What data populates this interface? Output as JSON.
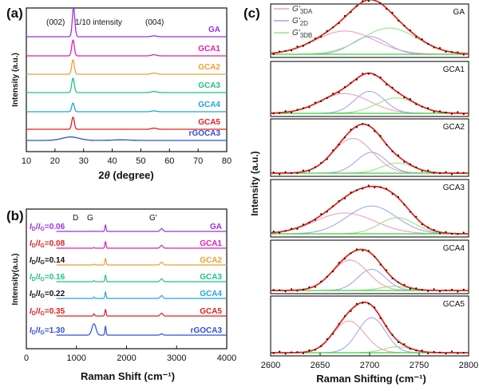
{
  "colors": {
    "GA": "#9b30e8",
    "GCA1": "#e01fb4",
    "GCA2": "#f0a030",
    "GCA3": "#22c08a",
    "GCA4": "#21a3e0",
    "GCA5": "#e0201e",
    "rGOCA3": "#2f4fdc",
    "raw": "#111111",
    "fit": "#e8261d",
    "g3da": "#f0a0b8",
    "g2d": "#a2a8ee",
    "g3db": "#9ee08c",
    "base": "#39d63a",
    "black": "#111111"
  },
  "panels": {
    "a": {
      "label": "(a)"
    },
    "b": {
      "label": "(b)"
    },
    "c": {
      "label": "(c)"
    }
  },
  "chart_data": [
    {
      "type": "line",
      "title": "",
      "xlabel": "2θ (degree)",
      "xlabel_main": "2",
      "xlabel_italic": "θ",
      "xlabel_unit": " (degree)",
      "ylabel": "Intensity (a.u.)",
      "xlim": [
        10,
        80
      ],
      "xticks": [
        "10",
        "20",
        "30",
        "40",
        "50",
        "60",
        "70",
        "80"
      ],
      "annotations": [
        "(002)",
        "1/10 intensity",
        "(004)"
      ],
      "stacked_offset": true,
      "series": [
        {
          "name": "GA",
          "peaks": [
            {
              "x": 26.5,
              "height": 1.0
            },
            {
              "x": 54.6,
              "height": 0.03
            }
          ]
        },
        {
          "name": "GCA1",
          "peaks": [
            {
              "x": 26.3,
              "height": 0.55
            },
            {
              "x": 54.6,
              "height": 0.04
            }
          ]
        },
        {
          "name": "GCA2",
          "peaks": [
            {
              "x": 26.3,
              "height": 0.5
            },
            {
              "x": 54.6,
              "height": 0.04
            }
          ]
        },
        {
          "name": "GCA3",
          "peaks": [
            {
              "x": 26.3,
              "height": 0.5
            },
            {
              "x": 54.6,
              "height": 0.04
            }
          ]
        },
        {
          "name": "GCA4",
          "peaks": [
            {
              "x": 26.3,
              "height": 0.3
            },
            {
              "x": 54.6,
              "height": 0.03
            }
          ]
        },
        {
          "name": "GCA5",
          "peaks": [
            {
              "x": 26.3,
              "height": 0.42
            },
            {
              "x": 54.6,
              "height": 0.04
            }
          ]
        },
        {
          "name": "rGOCA3",
          "peaks": [
            {
              "x": 25.5,
              "height": 0.12
            }
          ]
        }
      ]
    },
    {
      "type": "line",
      "title": "",
      "xlabel": "Raman Shift (cm⁻¹)",
      "ylabel": "Intensity(a.u.)",
      "xlim": [
        0,
        4000
      ],
      "xticks": [
        "0",
        "1000",
        "2000",
        "3000",
        "4000"
      ],
      "annotations": [
        "D",
        "G",
        "G'"
      ],
      "stacked_offset": true,
      "series": [
        {
          "name": "GA",
          "ratio_label": "I",
          "ratio_d": "D",
          "ratio_g": "G",
          "ratio_value": "=0.06",
          "ID_IG": 0.06
        },
        {
          "name": "GCA1",
          "ratio_label": "I",
          "ratio_d": "D",
          "ratio_g": "G",
          "ratio_value": "=0.08",
          "ID_IG": 0.08
        },
        {
          "name": "GCA2",
          "ratio_label": "I",
          "ratio_d": "D",
          "ratio_g": "G",
          "ratio_value": "=0.14",
          "ID_IG": 0.14
        },
        {
          "name": "GCA3",
          "ratio_label": "I",
          "ratio_d": "D",
          "ratio_g": "G",
          "ratio_value": "=0.16",
          "ID_IG": 0.16
        },
        {
          "name": "GCA4",
          "ratio_label": "I",
          "ratio_d": "D",
          "ratio_g": "G",
          "ratio_value": "=0.22",
          "ID_IG": 0.22
        },
        {
          "name": "GCA5",
          "ratio_label": "I",
          "ratio_d": "D",
          "ratio_g": "G",
          "ratio_value": "=0.35",
          "ID_IG": 0.35
        },
        {
          "name": "rGOCA3",
          "ratio_label": "I",
          "ratio_d": "D",
          "ratio_g": "G",
          "ratio_value": "=1.30",
          "ID_IG": 1.3
        }
      ],
      "peak_positions": {
        "D": 1350,
        "G": 1580,
        "G'": 2700
      }
    },
    {
      "type": "line",
      "title": "",
      "xlabel": "Raman Shifting (cm⁻¹)",
      "ylabel": "Intensity (a.u.)",
      "xlim": [
        2600,
        2800
      ],
      "xticks": [
        "2600",
        "2650",
        "2700",
        "2750",
        "2800"
      ],
      "legend": {
        "placement": "top-left",
        "entries": [
          {
            "main": "G'",
            "sub": "3DA"
          },
          {
            "main": "G'",
            "sub": "2D"
          },
          {
            "main": "G'",
            "sub": "3DB"
          }
        ]
      },
      "subplots": [
        {
          "name": "GA",
          "components": [
            {
              "name": "G'3DA",
              "center": 2675,
              "width": 30,
              "height": 0.55
            },
            {
              "name": "G'2D",
              "center": 2700,
              "width": 18,
              "height": 0.42
            },
            {
              "name": "G'3DB",
              "center": 2720,
              "width": 28,
              "height": 0.62
            }
          ]
        },
        {
          "name": "GCA1",
          "components": [
            {
              "name": "G'3DA",
              "center": 2675,
              "width": 25,
              "height": 0.45
            },
            {
              "name": "G'2D",
              "center": 2700,
              "width": 15,
              "height": 0.5
            },
            {
              "name": "G'3DB",
              "center": 2727,
              "width": 20,
              "height": 0.35
            }
          ]
        },
        {
          "name": "GCA2",
          "components": [
            {
              "name": "G'3DA",
              "center": 2683,
              "width": 20,
              "height": 0.75
            },
            {
              "name": "G'2D",
              "center": 2702,
              "width": 15,
              "height": 0.45
            },
            {
              "name": "G'3DB",
              "center": 2728,
              "width": 16,
              "height": 0.22
            }
          ]
        },
        {
          "name": "GCA3",
          "components": [
            {
              "name": "G'3DA",
              "center": 2675,
              "width": 30,
              "height": 0.45
            },
            {
              "name": "G'2D",
              "center": 2702,
              "width": 25,
              "height": 0.6
            },
            {
              "name": "G'3DB",
              "center": 2728,
              "width": 18,
              "height": 0.35
            }
          ]
        },
        {
          "name": "GCA4",
          "components": [
            {
              "name": "G'3DA",
              "center": 2680,
              "width": 18,
              "height": 0.72
            },
            {
              "name": "G'2D",
              "center": 2702,
              "width": 14,
              "height": 0.5
            },
            {
              "name": "G'3DB",
              "center": 2725,
              "width": 14,
              "height": 0.1
            }
          ]
        },
        {
          "name": "GCA5",
          "components": [
            {
              "name": "G'3DA",
              "center": 2679,
              "width": 16,
              "height": 0.65
            },
            {
              "name": "G'2D",
              "center": 2702,
              "width": 14,
              "height": 0.72
            },
            {
              "name": "G'3DB",
              "center": 2728,
              "width": 14,
              "height": 0.12
            }
          ]
        }
      ]
    }
  ]
}
